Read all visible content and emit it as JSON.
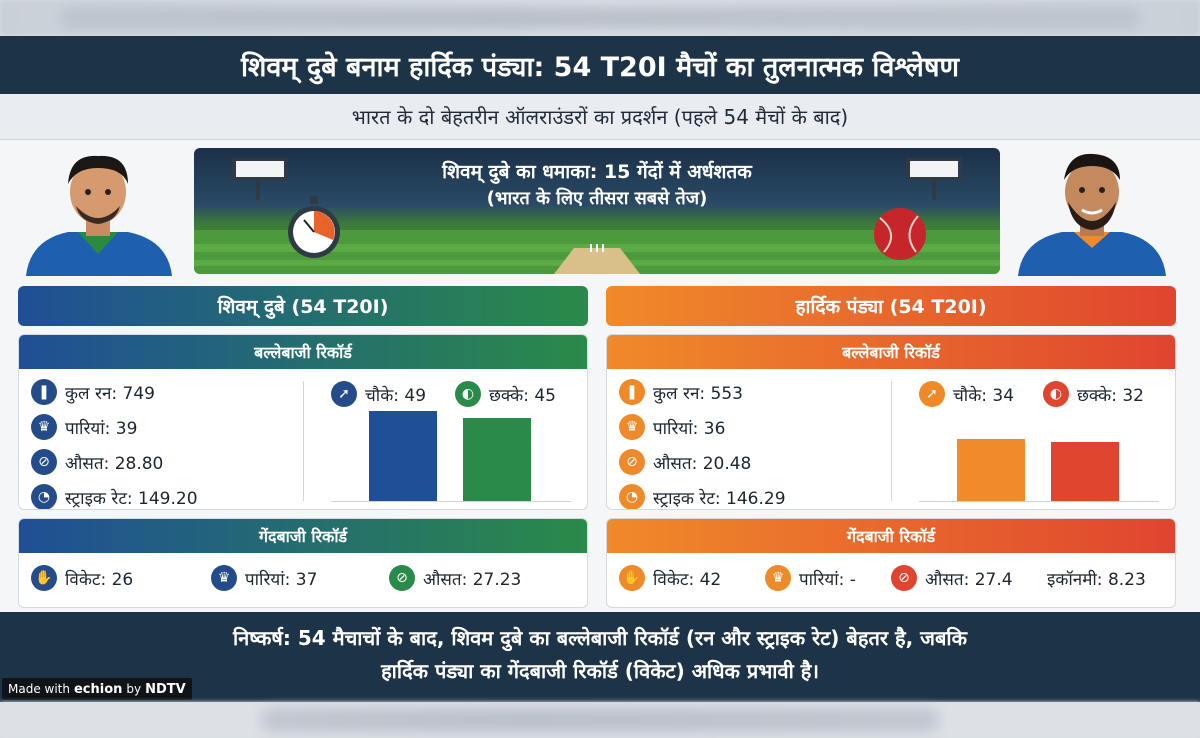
{
  "title": "शिवम् दुबे बनाम हार्दिक पंड्या: 54 T20I मैचों का तुलनात्मक विश्लेषण",
  "subtitle": "भारत के दो बेहतरीन ऑलराउंडरों का प्रदर्शन (पहले 54 मैचों के बाद)",
  "banner": {
    "title": "शिवम् दुबे का धमाका: 15 गेंदों में अर्धशतक",
    "subtitle": "(भारत के लिए तीसरा सबसे तेज)"
  },
  "left": {
    "heading": "शिवम् दुबे (54 T20I)",
    "batting_label": "बल्लेबाजी रिकॉर्ड",
    "bowling_label": "गेंदबाजी रिकॉर्ड",
    "runs": "कुल रन: 749",
    "innings": "पारियां: 39",
    "average": "औसत: 28.80",
    "strike_rate": "स्ट्राइक रेट: 149.20",
    "fours_label": "चौके: 49",
    "sixes_label": "छक्के: 45",
    "fours": 49,
    "sixes": 45,
    "wickets": "विकेट: 26",
    "bowl_innings": "पारियां: 37",
    "bowl_average": "औसत: 27.23"
  },
  "right": {
    "heading": "हार्दिक पंड्या (54 T20I)",
    "batting_label": "बल्लेबाजी रिकॉर्ड",
    "bowling_label": "गेंदबाजी रिकॉर्ड",
    "runs": "कुल रन: 553",
    "innings": "पारियां: 36",
    "average": "औसत: 20.48",
    "strike_rate": "स्ट्राइक रेट: 146.29",
    "fours_label": "चौके: 34",
    "sixes_label": "छक्के: 32",
    "fours": 34,
    "sixes": 32,
    "wickets": "विकेट: 42",
    "bowl_innings": "पारियां: -",
    "bowl_average": "औसत: 27.4",
    "economy": "इकॉनमी: 8.23"
  },
  "colors": {
    "dube_fours": "#1f4f96",
    "dube_sixes": "#2a8a49",
    "pandya_fours": "#f08a2a",
    "pandya_sixes": "#e0452f"
  },
  "footer": {
    "line1": "निष्कर्ष: 54 मैचाचों के बाद, शिवम दुबे का बल्लेबाजी रिकॉर्ड (रन और स्ट्राइक रेट) बेहतर है, जबकि",
    "line2": "हार्दिक पंड्या का गेंदबाजी रिकॉर्ड (विकेट) अधिक प्रभावी है।"
  },
  "credit": {
    "made_with": "Made with",
    "brand": "echion",
    "by": "by",
    "partner": "NDTV"
  }
}
